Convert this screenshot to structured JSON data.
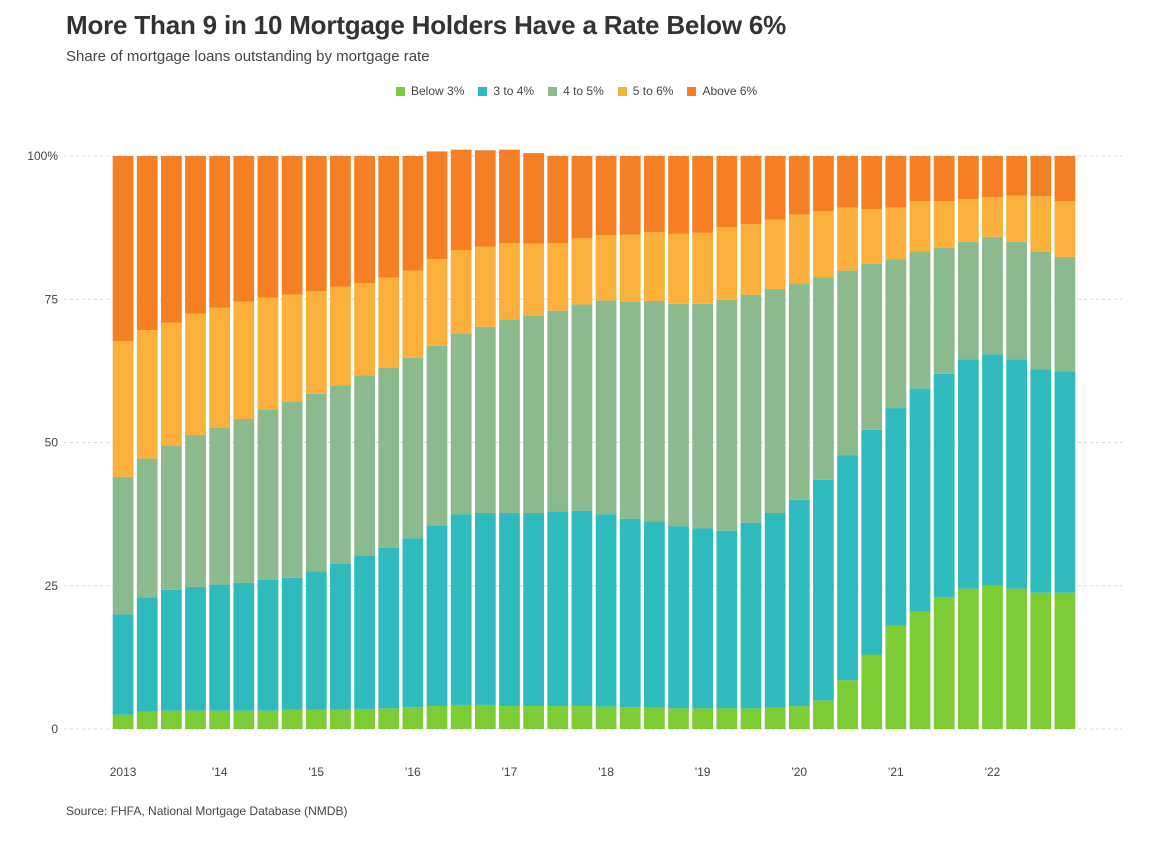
{
  "title": "More Than 9 in 10 Mortgage Holders Have a Rate Below 6%",
  "subtitle": "Share of mortgage loans outstanding by mortgage rate",
  "source": "Source: FHFA, National Mortgage Database (NMDB)",
  "legend": [
    {
      "label": "Below 3%",
      "color": "#7dcb35"
    },
    {
      "label": "3 to 4%",
      "color": "#2fbabd"
    },
    {
      "label": "4 to 5%",
      "color": "#8cba8f"
    },
    {
      "label": "5 to 6%",
      "color": "#fbb03b"
    },
    {
      "label": "Above 6%",
      "color": "#f47f24"
    }
  ],
  "chart_data": {
    "type": "bar",
    "stacked": true,
    "ylim": [
      0,
      100
    ],
    "yticks": [
      0,
      25,
      50,
      75,
      100
    ],
    "ytick_labels": [
      "0",
      "25",
      "50",
      "75",
      "100%"
    ],
    "xtick_labels": [
      "2013",
      "'14",
      "'15",
      "'16",
      "'17",
      "'18",
      "'19",
      "'20",
      "'21",
      "'22"
    ],
    "xtick_bar_index": [
      0,
      4,
      8,
      12,
      16,
      20,
      24,
      28,
      32,
      36
    ],
    "grid": "horizontal dashed",
    "legend_position": "top",
    "series": [
      {
        "name": "Below 3%",
        "color": "#7dcb35",
        "values": [
          2.5,
          3,
          3.2,
          3.2,
          3.2,
          3.2,
          3.2,
          3.4,
          3.4,
          3.4,
          3.5,
          3.6,
          3.8,
          4,
          4.2,
          4.2,
          4,
          4,
          4,
          4,
          3.9,
          3.8,
          3.7,
          3.6,
          3.6,
          3.6,
          3.6,
          3.7,
          4,
          5,
          8.5,
          13,
          18,
          20.5,
          23,
          24.5,
          25,
          24.5,
          23.8,
          23.8
        ]
      },
      {
        "name": "3 to 4%",
        "color": "#2fbabd",
        "values": [
          17.5,
          20,
          21.1,
          21.6,
          22,
          22.3,
          22.8,
          23,
          24.1,
          25.4,
          26.8,
          28,
          29.5,
          31.5,
          33.3,
          33.5,
          33.7,
          33.7,
          34,
          34.1,
          33.6,
          32.9,
          32.5,
          31.8,
          31.4,
          31,
          32.4,
          34,
          36,
          38.5,
          39.3,
          39.2,
          38,
          38.9,
          39,
          40,
          40.4,
          40,
          39,
          38.6
        ]
      },
      {
        "name": "4 to 5%",
        "color": "#8cba8f",
        "values": [
          24,
          24.2,
          25.2,
          26.5,
          27.4,
          28.6,
          29.8,
          30.8,
          31,
          31.2,
          31.4,
          31.4,
          31.5,
          31.4,
          31.5,
          32.5,
          33.8,
          34.5,
          35,
          36,
          37.3,
          37.9,
          38.5,
          38.8,
          39.2,
          40.3,
          39.8,
          39.1,
          37.8,
          35.3,
          32.2,
          29,
          26,
          24,
          22,
          20.5,
          20.5,
          20.5,
          20.5,
          20
        ]
      },
      {
        "name": "5 to 6%",
        "color": "#fbb03b",
        "values": [
          23.7,
          22.4,
          21.4,
          21.2,
          20.9,
          20.5,
          19.5,
          18.6,
          17.9,
          17.2,
          16.1,
          15.8,
          15.2,
          15.1,
          14.6,
          14,
          13.3,
          12.5,
          11.8,
          11.6,
          11.4,
          11.7,
          12,
          12.2,
          12.4,
          12.7,
          12.3,
          12.1,
          12,
          11.6,
          11,
          9.5,
          9,
          8.7,
          8.1,
          7.5,
          6.9,
          8.1,
          9.7,
          9.7
        ]
      },
      {
        "name": "Above 6%",
        "color": "#f47f24",
        "values": [
          32.3,
          30.4,
          29.1,
          27.5,
          26.5,
          25.4,
          24.7,
          24.2,
          23.6,
          22.8,
          22.2,
          21.2,
          20,
          18.8,
          17.5,
          16.8,
          16.3,
          15.8,
          15.2,
          14.3,
          13.8,
          13.7,
          13.3,
          13.6,
          13.4,
          12.4,
          11.9,
          11.1,
          10.2,
          9.6,
          9,
          9.3,
          9,
          7.9,
          7.9,
          7.5,
          7.2,
          6.9,
          7,
          7.9
        ]
      }
    ]
  }
}
